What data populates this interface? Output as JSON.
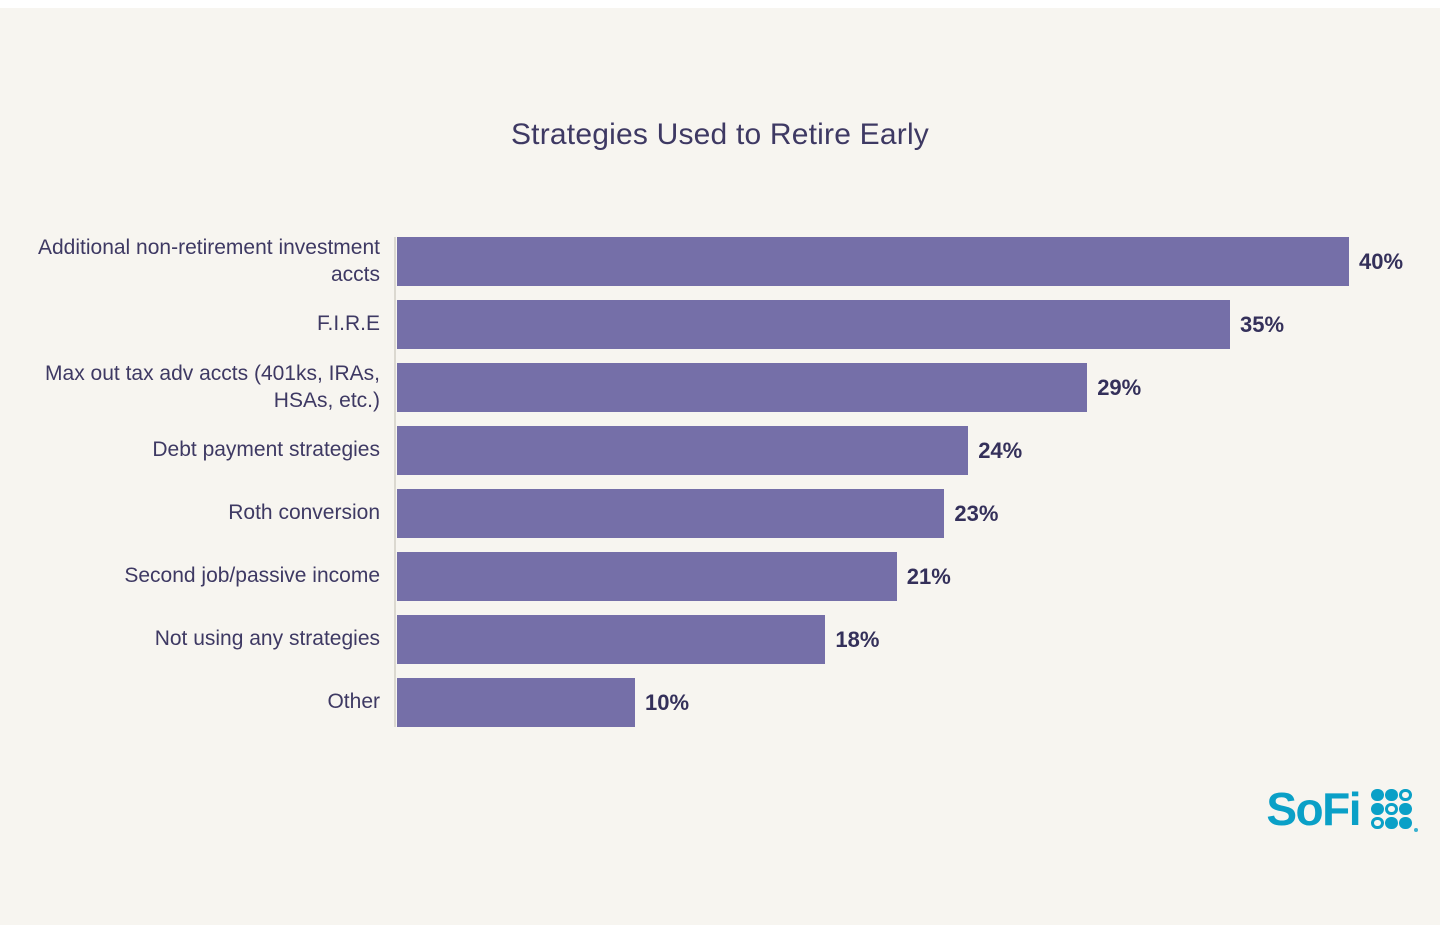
{
  "chart_data": {
    "type": "bar",
    "orientation": "horizontal",
    "title": "Strategies Used to Retire Early",
    "categories": [
      "Additional non-retirement investment accts",
      "F.I.R.E",
      "Max out tax adv accts (401ks, IRAs, HSAs, etc.)",
      "Debt payment strategies",
      "Roth conversion",
      "Second job/passive income",
      "Not using any strategies",
      "Other"
    ],
    "values": [
      40,
      35,
      29,
      24,
      23,
      21,
      18,
      10
    ],
    "value_labels": [
      "40%",
      "35%",
      "29%",
      "24%",
      "23%",
      "21%",
      "18%",
      "10%"
    ],
    "xlabel": "",
    "ylabel": "",
    "xlim": [
      0,
      40
    ],
    "grid": false,
    "legend": "none",
    "bar_color": "#756FA8",
    "background_color": "#F7F5F0",
    "text_color": "#3E3963",
    "value_text_color": "#34305A"
  },
  "branding": {
    "logo_text": "SoFi",
    "logo_color": "#0AA0C7",
    "logo_dots_pattern": [
      [
        1,
        1,
        0
      ],
      [
        1,
        0,
        1
      ],
      [
        0,
        1,
        1
      ]
    ]
  }
}
